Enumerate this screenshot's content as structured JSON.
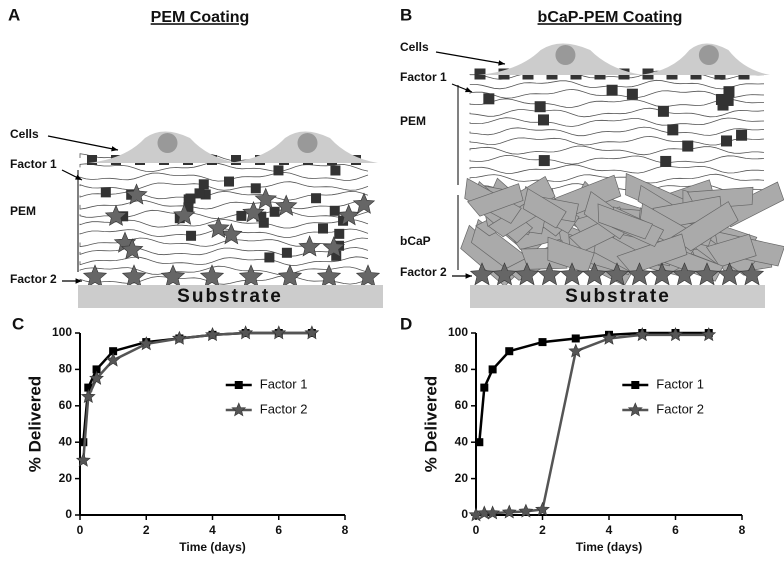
{
  "diagrams": [
    {
      "panel": "A",
      "title": "PEM Coating",
      "labels": [
        "Cells",
        "Factor 1",
        "PEM",
        "Factor 2"
      ],
      "substrate": "Substrate"
    },
    {
      "panel": "B",
      "title": "bCaP-PEM Coating",
      "labels": [
        "Cells",
        "Factor 1",
        "PEM",
        "bCaP",
        "Factor 2"
      ],
      "substrate": "Substrate"
    }
  ],
  "chart_data": [
    {
      "type": "line",
      "panel": "C",
      "xlabel": "Time (days)",
      "ylabel": "% Delivered",
      "xlim": [
        0,
        8
      ],
      "xticks": [
        0,
        2,
        4,
        6,
        8
      ],
      "ylim": [
        0,
        100
      ],
      "yticks": [
        0,
        20,
        40,
        60,
        80,
        100
      ],
      "legend": "right",
      "series": [
        {
          "name": "Factor 1",
          "color": "#000000",
          "marker": "square",
          "x": [
            0.1,
            0.25,
            0.5,
            1,
            2,
            3,
            4,
            5,
            6,
            7
          ],
          "values": [
            40,
            70,
            80,
            90,
            95,
            97,
            99,
            100,
            100,
            100
          ]
        },
        {
          "name": "Factor 2",
          "color": "#555555",
          "marker": "star",
          "x": [
            0.1,
            0.25,
            0.5,
            1,
            2,
            3,
            4,
            5,
            6,
            7
          ],
          "values": [
            30,
            65,
            75,
            85,
            94,
            97,
            99,
            100,
            100,
            100
          ]
        }
      ]
    },
    {
      "type": "line",
      "panel": "D",
      "xlabel": "Time (days)",
      "ylabel": "% Delivered",
      "xlim": [
        0,
        8
      ],
      "xticks": [
        0,
        2,
        4,
        6,
        8
      ],
      "ylim": [
        0,
        100
      ],
      "yticks": [
        0,
        20,
        40,
        60,
        80,
        100
      ],
      "legend": "right",
      "series": [
        {
          "name": "Factor 1",
          "color": "#000000",
          "marker": "square",
          "x": [
            0.1,
            0.25,
            0.5,
            1,
            2,
            3,
            4,
            5,
            6,
            7
          ],
          "values": [
            40,
            70,
            80,
            90,
            95,
            97,
            99,
            100,
            100,
            100
          ]
        },
        {
          "name": "Factor 2",
          "color": "#555555",
          "marker": "star",
          "x": [
            0,
            0.25,
            0.5,
            1,
            1.5,
            2,
            3,
            4,
            5,
            6,
            7
          ],
          "values": [
            0,
            1,
            1,
            1.5,
            2,
            3,
            90,
            97,
            99,
            99,
            99
          ]
        }
      ]
    }
  ]
}
